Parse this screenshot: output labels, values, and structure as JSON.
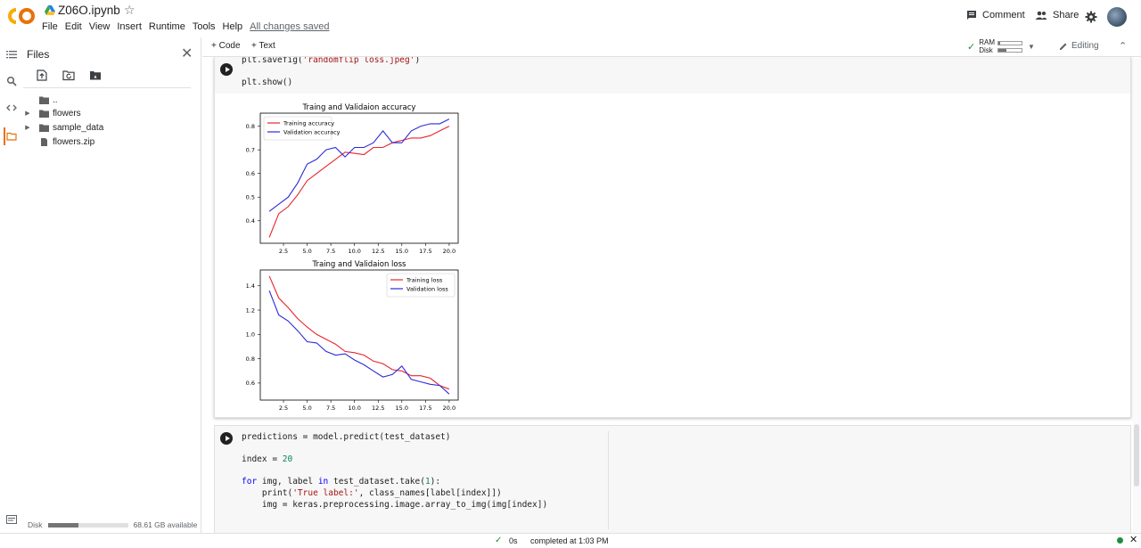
{
  "app": {
    "logo_text": "CO",
    "notebook_name": "Z06O.ipynb",
    "menu": [
      "File",
      "Edit",
      "View",
      "Insert",
      "Runtime",
      "Tools",
      "Help"
    ],
    "save_status": "All changes saved",
    "comment_label": "Comment",
    "share_label": "Share"
  },
  "files_panel": {
    "title": "Files",
    "items": [
      {
        "name": "..",
        "type": "folder-up"
      },
      {
        "name": "flowers",
        "type": "folder"
      },
      {
        "name": "sample_data",
        "type": "folder"
      },
      {
        "name": "flowers.zip",
        "type": "file"
      }
    ],
    "disk_label": "Disk",
    "disk_available": "68.61 GB available",
    "disk_used_fraction": 0.38
  },
  "toolbar": {
    "add_code": "+ Code",
    "add_text": "+ Text",
    "ram_label": "RAM",
    "disk_label": "Disk",
    "ram_used_fraction": 0.06,
    "disk_used_fraction": 0.35,
    "editing_label": "Editing"
  },
  "cell1": {
    "lines": [
      "plt.savefig('randomflip loss.jpeg')",
      "plt.show()"
    ]
  },
  "cell2": {
    "line1": "predictions = model.predict(test_dataset)",
    "line2_a": "index = ",
    "line2_b": "20",
    "line3_kw1": "for",
    "line3_a": " img, label ",
    "line3_kw2": "in",
    "line3_b": " test_dataset.take(",
    "line3_num": "1",
    "line3_c": "):",
    "line4_a": "    print(",
    "line4_str": "'True label:'",
    "line4_b": ", class_names[label[index]])",
    "line5": "    img = keras.preprocessing.image.array_to_img(img[index])"
  },
  "status": {
    "elapsed": "0s",
    "message": "completed at 1:03 PM"
  },
  "chart_data": [
    {
      "type": "line",
      "title": "Traing and Validaion accuracy",
      "x": [
        1,
        2,
        3,
        4,
        5,
        6,
        7,
        8,
        9,
        10,
        11,
        12,
        13,
        14,
        15,
        16,
        17,
        18,
        19,
        20
      ],
      "series": [
        {
          "name": "Training accuracy",
          "color": "#e8242b",
          "values": [
            0.33,
            0.43,
            0.46,
            0.51,
            0.57,
            0.6,
            0.63,
            0.66,
            0.69,
            0.685,
            0.68,
            0.71,
            0.71,
            0.73,
            0.74,
            0.75,
            0.75,
            0.76,
            0.78,
            0.8
          ]
        },
        {
          "name": "Validation accuracy",
          "color": "#2b2bd9",
          "values": [
            0.44,
            0.47,
            0.5,
            0.56,
            0.64,
            0.66,
            0.7,
            0.71,
            0.67,
            0.71,
            0.71,
            0.73,
            0.78,
            0.73,
            0.73,
            0.78,
            0.8,
            0.81,
            0.81,
            0.83
          ]
        }
      ],
      "xticks": [
        "2.5",
        "5.0",
        "7.5",
        "10.0",
        "12.5",
        "15.0",
        "17.5",
        "20.0"
      ],
      "yticks": [
        "0.4",
        "0.5",
        "0.6",
        "0.7",
        "0.8"
      ],
      "xlim": [
        0.05,
        20.95
      ],
      "ylim": [
        0.305,
        0.855
      ],
      "legend_position": "upper-left"
    },
    {
      "type": "line",
      "title": "Traing and Validaion loss",
      "x": [
        1,
        2,
        3,
        4,
        5,
        6,
        7,
        8,
        9,
        10,
        11,
        12,
        13,
        14,
        15,
        16,
        17,
        18,
        19,
        20
      ],
      "series": [
        {
          "name": "Training loss",
          "color": "#e8242b",
          "values": [
            1.48,
            1.3,
            1.22,
            1.13,
            1.06,
            1.0,
            0.96,
            0.92,
            0.86,
            0.85,
            0.83,
            0.78,
            0.76,
            0.71,
            0.7,
            0.66,
            0.66,
            0.64,
            0.58,
            0.55
          ]
        },
        {
          "name": "Validation loss",
          "color": "#2b2bd9",
          "values": [
            1.36,
            1.16,
            1.11,
            1.03,
            0.94,
            0.93,
            0.86,
            0.83,
            0.84,
            0.79,
            0.75,
            0.7,
            0.65,
            0.67,
            0.74,
            0.63,
            0.61,
            0.59,
            0.58,
            0.51
          ]
        }
      ],
      "xticks": [
        "2.5",
        "5.0",
        "7.5",
        "10.0",
        "12.5",
        "15.0",
        "17.5",
        "20.0"
      ],
      "yticks": [
        "0.6",
        "0.8",
        "1.0",
        "1.2",
        "1.4"
      ],
      "xlim": [
        0.05,
        20.95
      ],
      "ylim": [
        0.46,
        1.53
      ],
      "legend_position": "upper-right"
    }
  ]
}
